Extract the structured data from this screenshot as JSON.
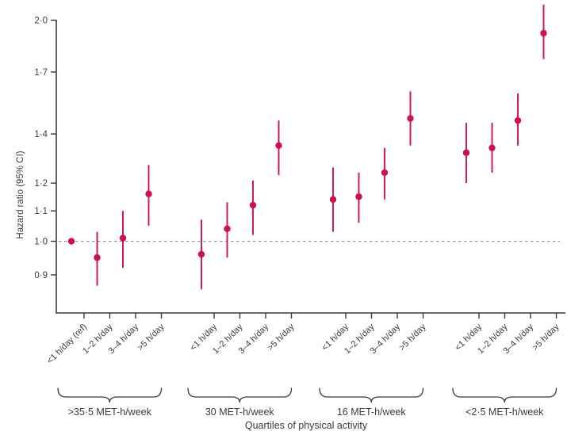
{
  "chart_data": {
    "type": "scatter",
    "subtype": "forest-plot-error-bars",
    "title": "",
    "ylabel": "Hazard ratio (95% CI)",
    "xlabel": "Quartiles of physical activity",
    "yscale": "log",
    "ylim": [
      0.8,
      2.0
    ],
    "grid": false,
    "legend": "none",
    "yticks": [
      {
        "value": 2.0,
        "label": "2·0"
      },
      {
        "value": 1.7,
        "label": "1·7"
      },
      {
        "value": 1.4,
        "label": "1·4"
      },
      {
        "value": 1.2,
        "label": "1·2"
      },
      {
        "value": 1.1,
        "label": "1·1"
      },
      {
        "value": 1.0,
        "label": "1·0"
      },
      {
        "value": 0.9,
        "label": "0·9"
      }
    ],
    "reference_line": {
      "value": 1.0,
      "style": "dashed",
      "color": "#7fa0a8"
    },
    "point_color": "#d0104c",
    "axis_color": "#3a3a3a",
    "groups": [
      {
        "label": ">35·5 MET-h/week",
        "points": [
          {
            "category": "<1 h/day (ref)",
            "hr": 1.0,
            "ci_low": null,
            "ci_high": null,
            "reference": true
          },
          {
            "category": "1–2 h/day",
            "hr": 0.95,
            "ci_low": 0.87,
            "ci_high": 1.03
          },
          {
            "category": "3–4 h/day",
            "hr": 1.01,
            "ci_low": 0.92,
            "ci_high": 1.1
          },
          {
            "category": ">5 h/day",
            "hr": 1.16,
            "ci_low": 1.05,
            "ci_high": 1.27
          }
        ]
      },
      {
        "label": "30 MET-h/week",
        "points": [
          {
            "category": "<1 h/day",
            "hr": 0.96,
            "ci_low": 0.86,
            "ci_high": 1.07
          },
          {
            "category": "1–2 h/day",
            "hr": 1.04,
            "ci_low": 0.95,
            "ci_high": 1.13
          },
          {
            "category": "3–4 h/day",
            "hr": 1.12,
            "ci_low": 1.02,
            "ci_high": 1.21
          },
          {
            "category": ">5 h/day",
            "hr": 1.35,
            "ci_low": 1.23,
            "ci_high": 1.46
          }
        ]
      },
      {
        "label": "16 MET-h/week",
        "points": [
          {
            "category": "<1 h/day",
            "hr": 1.14,
            "ci_low": 1.03,
            "ci_high": 1.26
          },
          {
            "category": "1–2 h/day",
            "hr": 1.15,
            "ci_low": 1.06,
            "ci_high": 1.24
          },
          {
            "category": "3–4 h/day",
            "hr": 1.24,
            "ci_low": 1.14,
            "ci_high": 1.34
          },
          {
            "category": ">5 h/day",
            "hr": 1.47,
            "ci_low": 1.35,
            "ci_high": 1.6
          }
        ]
      },
      {
        "label": "<2·5 MET-h/week",
        "points": [
          {
            "category": "<1 h/day",
            "hr": 1.32,
            "ci_low": 1.2,
            "ci_high": 1.45
          },
          {
            "category": "1–2 h/day",
            "hr": 1.34,
            "ci_low": 1.24,
            "ci_high": 1.45
          },
          {
            "category": "3–4 h/day",
            "hr": 1.46,
            "ci_low": 1.35,
            "ci_high": 1.59
          },
          {
            "category": ">5 h/day",
            "hr": 1.92,
            "ci_low": 1.77,
            "ci_high": 2.1
          }
        ]
      }
    ]
  }
}
